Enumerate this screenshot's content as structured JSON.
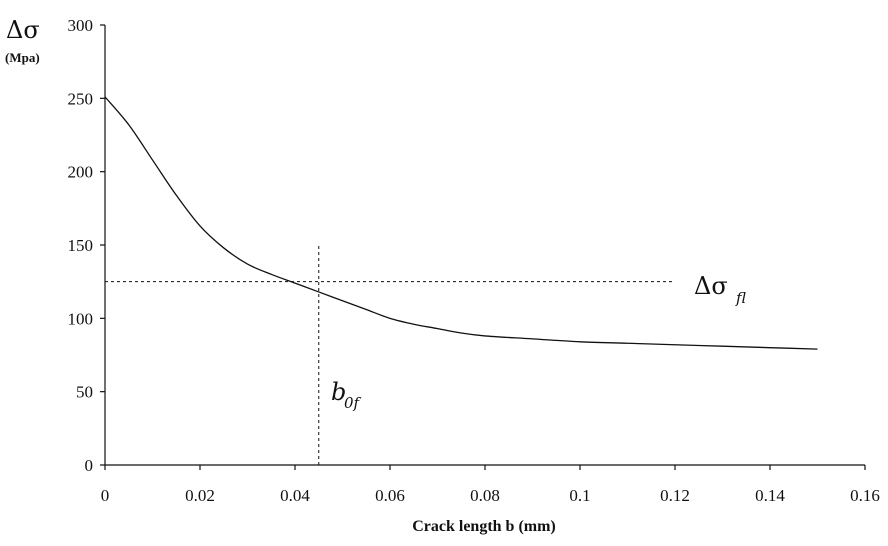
{
  "chart_data": {
    "type": "line",
    "title": "",
    "xlabel": "Crack length b (mm)",
    "ylabel": "Δσ",
    "ylabel_unit": "(Mpa)",
    "xlim": [
      0,
      0.16
    ],
    "ylim": [
      0,
      300
    ],
    "x_ticks": [
      "0",
      "0.02",
      "0.04",
      "0.06",
      "0.08",
      "0.1",
      "0.12",
      "0.14",
      "0.16"
    ],
    "y_ticks": [
      "0",
      "50",
      "100",
      "150",
      "200",
      "250",
      "300"
    ],
    "grid": false,
    "series": [
      {
        "x": [
          0,
          0.005,
          0.01,
          0.015,
          0.02,
          0.025,
          0.03,
          0.035,
          0.04,
          0.045,
          0.05,
          0.055,
          0.06,
          0.065,
          0.07,
          0.075,
          0.08,
          0.09,
          0.1,
          0.11,
          0.12,
          0.13,
          0.14,
          0.15
        ],
        "y": [
          251,
          232,
          208,
          184,
          163,
          148,
          137,
          130,
          124,
          118,
          112,
          106,
          100,
          96,
          93,
          90,
          88,
          86,
          84,
          83,
          82,
          81,
          80,
          79
        ]
      }
    ],
    "reference_lines": [
      {
        "orientation": "horizontal",
        "value": 125,
        "from": 0,
        "to": 0.12,
        "style": "dashed",
        "label_main": "Δσ",
        "label_sub": "fl"
      },
      {
        "orientation": "vertical",
        "value": 0.045,
        "from": 0,
        "to": 150,
        "style": "dashed",
        "label_main": "b",
        "label_sub": "0f"
      }
    ]
  }
}
